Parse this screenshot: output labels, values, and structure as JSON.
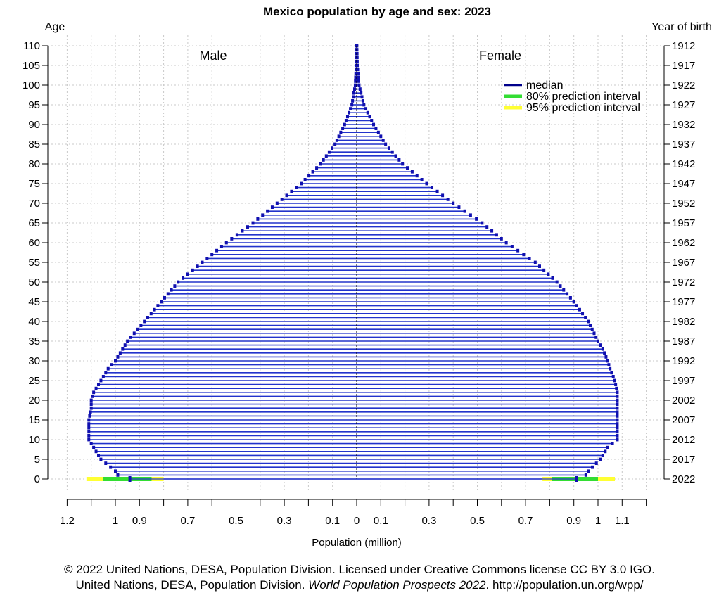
{
  "chart_data": {
    "type": "population_pyramid",
    "title": "Mexico population by age and sex: 2023",
    "y_left_label": "Age",
    "y_right_label": "Year of birth",
    "xlabel": "Population (million)",
    "male_label": "Male",
    "female_label": "Female",
    "legend": {
      "position": "top-right",
      "entries": [
        {
          "label": "median",
          "color": "#00008b"
        },
        {
          "label": "80% prediction interval",
          "color": "#33dd33"
        },
        {
          "label": "95% prediction interval",
          "color": "#ffff33"
        }
      ]
    },
    "grid": true,
    "xlim": [
      -1.2,
      1.2
    ],
    "ylim": [
      0,
      110
    ],
    "age_ticks": [
      0,
      5,
      10,
      15,
      20,
      25,
      30,
      35,
      40,
      45,
      50,
      55,
      60,
      65,
      70,
      75,
      80,
      85,
      90,
      95,
      100,
      105,
      110
    ],
    "birth_year_ticks": [
      "2022",
      "2017",
      "2012",
      "2007",
      "2002",
      "1997",
      "1992",
      "1987",
      "1982",
      "1977",
      "1972",
      "1967",
      "1962",
      "1957",
      "1952",
      "1947",
      "1942",
      "1937",
      "1932",
      "1927",
      "1922",
      "1917",
      "1912"
    ],
    "x_tick_labels": [
      {
        "v": -1.2,
        "label": "1.2"
      },
      {
        "v": -1.0,
        "label": "1"
      },
      {
        "v": -0.9,
        "label": "0.9"
      },
      {
        "v": -0.7,
        "label": "0.7"
      },
      {
        "v": -0.5,
        "label": "0.5"
      },
      {
        "v": -0.3,
        "label": "0.3"
      },
      {
        "v": -0.1,
        "label": "0.1"
      },
      {
        "v": 0,
        "label": "0"
      },
      {
        "v": 0.1,
        "label": "0.1"
      },
      {
        "v": 0.3,
        "label": "0.3"
      },
      {
        "v": 0.5,
        "label": "0.5"
      },
      {
        "v": 0.7,
        "label": "0.7"
      },
      {
        "v": 0.9,
        "label": "0.9"
      },
      {
        "v": 1.0,
        "label": "1"
      },
      {
        "v": 1.1,
        "label": "1.1"
      }
    ],
    "male_profile_age": [
      0,
      1,
      2,
      5,
      8,
      10,
      12,
      15,
      18,
      20,
      22,
      25,
      28,
      30,
      33,
      35,
      40,
      45,
      50,
      55,
      60,
      65,
      70,
      75,
      80,
      85,
      90,
      95,
      100,
      105,
      110
    ],
    "male_profile_value": [
      0.94,
      0.99,
      1.0,
      1.06,
      1.09,
      1.11,
      1.11,
      1.11,
      1.1,
      1.1,
      1.09,
      1.06,
      1.03,
      1.0,
      0.97,
      0.95,
      0.88,
      0.81,
      0.74,
      0.64,
      0.54,
      0.43,
      0.33,
      0.23,
      0.15,
      0.09,
      0.05,
      0.02,
      0.006,
      0.002,
      0.001
    ],
    "female_profile_age": [
      0,
      1,
      2,
      5,
      8,
      10,
      12,
      15,
      18,
      20,
      22,
      25,
      28,
      30,
      33,
      35,
      40,
      45,
      50,
      55,
      60,
      65,
      70,
      75,
      80,
      85,
      90,
      95,
      100,
      105,
      110
    ],
    "female_profile_value": [
      0.91,
      0.95,
      0.96,
      1.01,
      1.04,
      1.08,
      1.08,
      1.08,
      1.08,
      1.08,
      1.08,
      1.07,
      1.05,
      1.04,
      1.02,
      1.0,
      0.96,
      0.9,
      0.83,
      0.74,
      0.62,
      0.52,
      0.4,
      0.29,
      0.19,
      0.12,
      0.07,
      0.03,
      0.01,
      0.003,
      0.001
    ],
    "age0_intervals": {
      "male": {
        "p80": [
          1.05,
          0.85
        ],
        "p95": [
          1.12,
          0.8
        ]
      },
      "female": {
        "p80": [
          0.81,
          1.0
        ],
        "p95": [
          0.77,
          1.07
        ]
      }
    }
  },
  "footer": {
    "line1": "© 2022 United Nations, DESA, Population Division. Licensed under Creative Commons license CC BY 3.0 IGO.",
    "line2_prefix": "United Nations, DESA, Population Division.",
    "line2_italic": "World Population Prospects 2022",
    "line2_suffix": ". http://population.un.org/wpp/"
  }
}
